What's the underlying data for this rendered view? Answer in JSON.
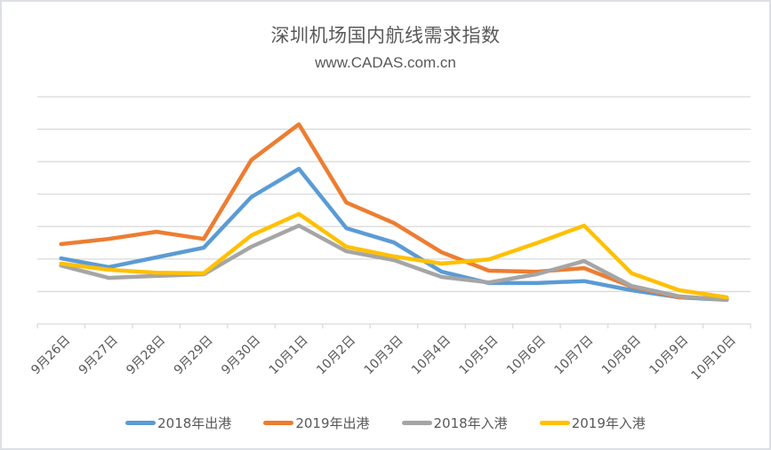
{
  "chart_data": {
    "type": "line",
    "title": "深圳机场国内航线需求指数",
    "subtitle": "www.CADAS.com.cn",
    "xlabel": "",
    "ylabel": "",
    "ylim": [
      0,
      7
    ],
    "y_gridlines": 7,
    "grid": true,
    "legend_position": "bottom",
    "categories": [
      "9月26日",
      "9月27日",
      "9月28日",
      "9月29日",
      "9月30日",
      "10月1日",
      "10月2日",
      "10月3日",
      "10月4日",
      "10月5日",
      "10月6日",
      "10月7日",
      "10月8日",
      "10月9日",
      "10月10日"
    ],
    "series": [
      {
        "name": "2018年出港",
        "color": "#5b9bd5",
        "values": [
          2.02,
          1.75,
          2.05,
          2.35,
          3.91,
          4.78,
          2.95,
          2.51,
          1.61,
          1.26,
          1.26,
          1.32,
          1.04,
          0.82,
          0.74
        ]
      },
      {
        "name": "2019年出港",
        "color": "#ed7d31",
        "values": [
          2.46,
          2.62,
          2.84,
          2.62,
          5.05,
          6.15,
          3.74,
          3.11,
          2.21,
          1.64,
          1.61,
          1.72,
          1.15,
          0.82,
          0.77
        ]
      },
      {
        "name": "2018年入港",
        "color": "#a5a5a5",
        "values": [
          1.8,
          1.42,
          1.48,
          1.53,
          2.38,
          3.03,
          2.24,
          1.97,
          1.45,
          1.28,
          1.53,
          1.94,
          1.17,
          0.85,
          0.74
        ]
      },
      {
        "name": "2019年入港",
        "color": "#ffc000",
        "values": [
          1.86,
          1.67,
          1.58,
          1.56,
          2.73,
          3.39,
          2.38,
          2.08,
          1.86,
          1.99,
          2.49,
          3.03,
          1.56,
          1.04,
          0.82
        ]
      }
    ]
  },
  "colors": {
    "gridline": "#d9d9d9",
    "axis": "#d9d9d9",
    "text": "#595959",
    "border": "#dcdfe3"
  }
}
